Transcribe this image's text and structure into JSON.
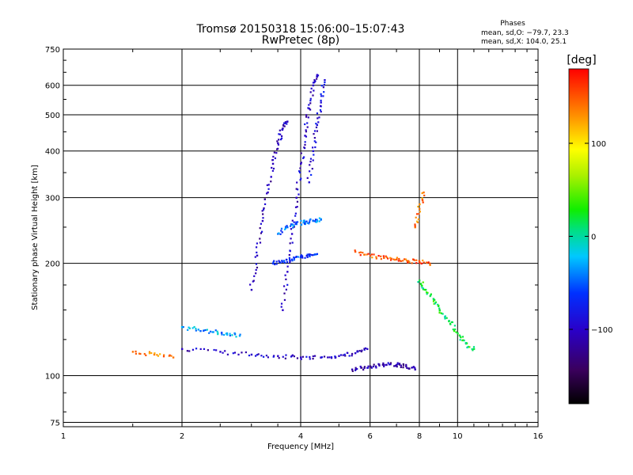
{
  "chart_data": {
    "type": "scatter",
    "title": "Tromsø 20150318 15:06:00–15:07:43",
    "subtitle": "RwPretec (8p)",
    "xlabel": "Frequency [MHz]",
    "ylabel": "Stationary phase Virtual Height [km]",
    "x_scale": "log",
    "y_scale": "log",
    "xlim": [
      1,
      16
    ],
    "ylim": [
      73,
      750
    ],
    "x_ticks": [
      1,
      2,
      4,
      6,
      8,
      10,
      16
    ],
    "x_tick_labels": [
      "1",
      "2",
      "4",
      "6",
      "8",
      "10",
      "16"
    ],
    "y_ticks": [
      75,
      100,
      200,
      300,
      400,
      500,
      600,
      750
    ],
    "y_tick_labels": [
      "75",
      "100",
      "200",
      "300",
      "400",
      "500",
      "600",
      "750"
    ],
    "grid": true,
    "stats": {
      "heading": "Phases",
      "line1": "mean, sd,O: −79.7, 23.3",
      "line2": "mean, sd,X: 104.0, 25.1"
    },
    "colorbar": {
      "unit_label": "[deg]",
      "range": [
        -180,
        180
      ],
      "tick_values": [
        100,
        0,
        -100
      ],
      "tick_labels": [
        "100",
        "0",
        "−100"
      ],
      "colormap": "rainbow (black-purple-blue-cyan-green-yellow-orange-red)"
    },
    "traces": [
      {
        "name": "",
        "x": [
          2.0,
          2.5,
          3.0,
          3.5,
          4.0,
          4.5,
          5.0,
          5.5,
          5.9
        ],
        "y": [
          118,
          116,
          114,
          113,
          112,
          112,
          113,
          115,
          118
        ],
        "phase_mean": -100
      },
      {
        "name": "",
        "x": [
          5.4,
          5.8,
          6.2,
          6.6,
          7.0,
          7.4,
          7.8
        ],
        "y": [
          104,
          105,
          106,
          107,
          107,
          106,
          104
        ],
        "phase_mean": -110
      },
      {
        "name": "",
        "x": [
          2.0,
          2.2,
          2.4,
          2.6,
          2.8
        ],
        "y": [
          135,
          133,
          131,
          130,
          128
        ],
        "phase_mean": -30
      },
      {
        "name": "",
        "x": [
          1.5,
          1.7,
          1.9
        ],
        "y": [
          116,
          114,
          112
        ],
        "phase_mean": 140
      },
      {
        "name": "",
        "x": [
          3.0,
          3.1,
          3.2,
          3.3,
          3.4,
          3.5,
          3.6,
          3.7
        ],
        "y": [
          170,
          210,
          260,
          310,
          370,
          420,
          460,
          480
        ],
        "phase_mean": -105
      },
      {
        "name": "",
        "x": [
          3.6,
          3.7,
          3.8,
          3.9,
          4.0,
          4.1,
          4.2,
          4.3,
          4.4
        ],
        "y": [
          150,
          190,
          240,
          300,
          370,
          440,
          520,
          600,
          640
        ],
        "phase_mean": -100
      },
      {
        "name": "",
        "x": [
          4.2,
          4.3,
          4.4,
          4.5,
          4.6
        ],
        "y": [
          330,
          400,
          470,
          540,
          620
        ],
        "phase_mean": -90
      },
      {
        "name": "",
        "x": [
          3.5,
          3.7,
          3.9,
          4.1,
          4.3,
          4.5
        ],
        "y": [
          240,
          250,
          255,
          258,
          260,
          262
        ],
        "phase_mean": -45
      },
      {
        "name": "",
        "x": [
          3.4,
          3.6,
          3.8,
          4.0,
          4.2,
          4.4
        ],
        "y": [
          200,
          202,
          205,
          208,
          210,
          212
        ],
        "phase_mean": -60
      },
      {
        "name": "",
        "x": [
          5.5,
          6.0,
          6.5,
          7.0,
          7.5,
          8.0,
          8.5
        ],
        "y": [
          215,
          210,
          207,
          205,
          203,
          202,
          200
        ],
        "phase_mean": 150
      },
      {
        "name": "",
        "x": [
          7.8,
          8.0,
          8.2
        ],
        "y": [
          250,
          280,
          310
        ],
        "phase_mean": 140
      },
      {
        "name": "",
        "x": [
          8.0,
          8.3,
          8.7,
          9.0,
          9.5,
          10.0,
          10.5,
          11.0
        ],
        "y": [
          180,
          170,
          160,
          150,
          140,
          130,
          122,
          118
        ],
        "phase_mean": 20
      }
    ]
  }
}
